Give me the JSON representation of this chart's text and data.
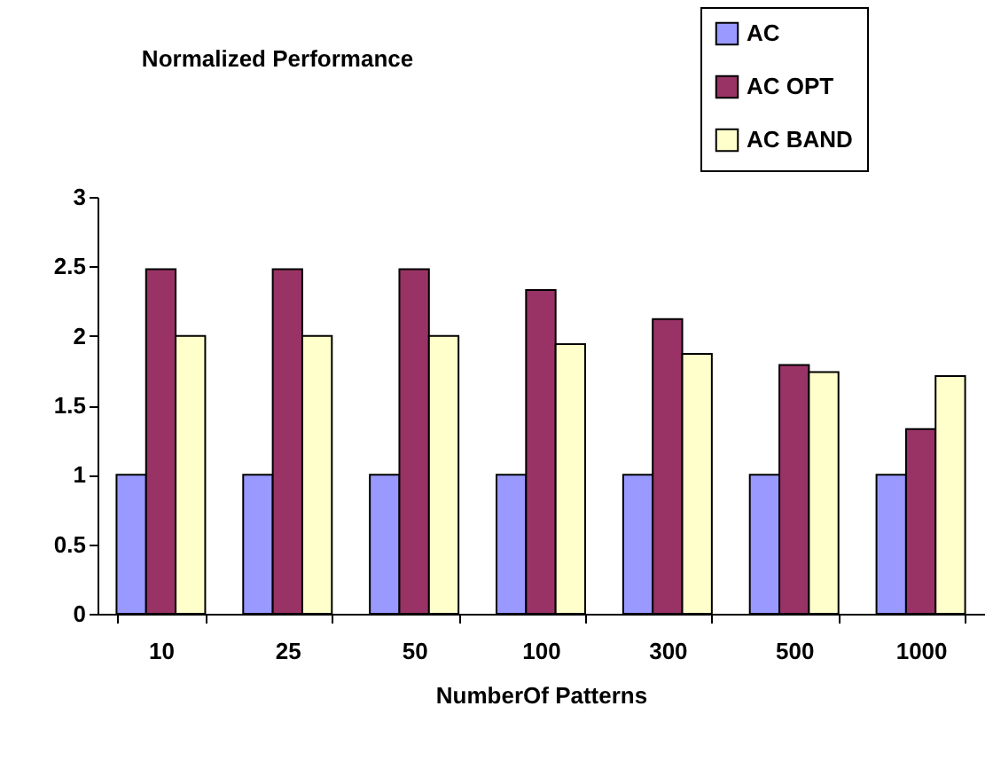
{
  "chart_data": {
    "type": "bar",
    "title": "Normalized Performance",
    "xlabel": "NumberOf Patterns",
    "categories": [
      "10",
      "25",
      "50",
      "100",
      "300",
      "500",
      "1000"
    ],
    "series": [
      {
        "name": "AC",
        "color": "#9999ff",
        "values": [
          1,
          1,
          1,
          1,
          1,
          1,
          1
        ]
      },
      {
        "name": "AC OPT",
        "color": "#993366",
        "values": [
          2.48,
          2.48,
          2.48,
          2.33,
          2.12,
          1.79,
          1.33
        ]
      },
      {
        "name": "AC BAND",
        "color": "#ffffcc",
        "values": [
          2.0,
          2.0,
          2.0,
          1.94,
          1.87,
          1.74,
          1.71
        ]
      }
    ],
    "ylim": [
      0,
      3
    ],
    "yticks": [
      0,
      0.5,
      1,
      1.5,
      2,
      2.5,
      3
    ],
    "grid": false,
    "legend": "top right"
  }
}
